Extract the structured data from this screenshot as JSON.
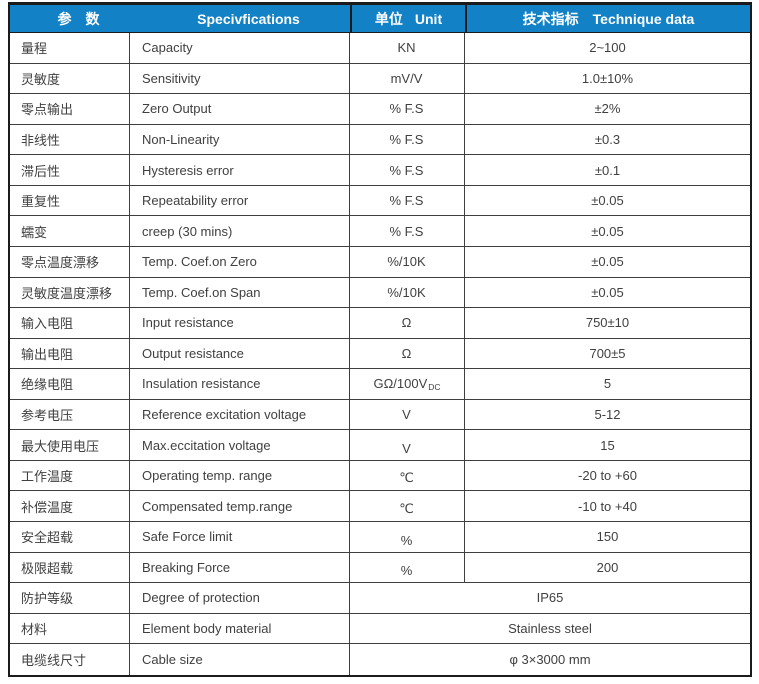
{
  "colors": {
    "header_bg": "#1281c6",
    "header_text": "#ffffff",
    "grid_line": "#3f3f3f",
    "outer_border": "#1b1b1b",
    "body_text": "#404040"
  },
  "table": {
    "header": {
      "param_zh": "参　数",
      "spec": "Specivfications",
      "unit_zh": "单位",
      "unit_en": "Unit",
      "tech_zh": "技术指标",
      "tech_en": "Technique data"
    },
    "rows": [
      {
        "zh": "量程",
        "en": "Capacity",
        "unit": "KN",
        "value": "2~100"
      },
      {
        "zh": "灵敏度",
        "en": "Sensitivity",
        "unit": "mV/V",
        "value": "1.0±10%"
      },
      {
        "zh": "零点输出",
        "en": "Zero Output",
        "unit": "% F.S",
        "value": "±2%"
      },
      {
        "zh": "非线性",
        "en": "Non-Linearity",
        "unit": "% F.S",
        "value": "±0.3"
      },
      {
        "zh": "滞后性",
        "en": "Hysteresis error",
        "unit": "% F.S",
        "value": "±0.1"
      },
      {
        "zh": "重复性",
        "en": "Repeatability error",
        "unit": "% F.S",
        "value": "±0.05"
      },
      {
        "zh": "蠕变",
        "en": "creep (30 mins)",
        "unit": "% F.S",
        "value": "±0.05"
      },
      {
        "zh": "零点温度漂移",
        "en": "Temp. Coef.on Zero",
        "unit": "%/10K",
        "value": "±0.05"
      },
      {
        "zh": "灵敏度温度漂移",
        "en": "Temp. Coef.on Span",
        "unit": "%/10K",
        "value": "±0.05"
      },
      {
        "zh": "输入电阻",
        "en": "Input resistance",
        "unit": "Ω",
        "value": "750±10"
      },
      {
        "zh": "输出电阻",
        "en": "Output resistance",
        "unit": "Ω",
        "value": "700±5"
      },
      {
        "zh": "绝缘电阻",
        "en": "Insulation resistance",
        "unit": "GΩ/100V",
        "unit_sub": "DC",
        "value": "5"
      },
      {
        "zh": "参考电压",
        "en": "Reference excitation voltage",
        "unit": "V",
        "value": "5-12"
      },
      {
        "zh": "最大使用电压",
        "en": "Max.eccitation voltage",
        "unit": "V",
        "value": "15"
      },
      {
        "zh": "工作温度",
        "en": "Operating temp. range",
        "unit": "℃",
        "value": "-20 to +60"
      },
      {
        "zh": "补偿温度",
        "en": "Compensated temp.range",
        "unit": "℃",
        "value": "-10 to +40"
      },
      {
        "zh": "安全超载",
        "en": "Safe Force limit",
        "unit": "%",
        "value": "150"
      },
      {
        "zh": "极限超载",
        "en": "Breaking Force",
        "unit": "%",
        "value": "200"
      },
      {
        "zh": "防护等级",
        "en": "Degree of protection",
        "merged": true,
        "value": "IP65"
      },
      {
        "zh": "材料",
        "en": "Element body material",
        "merged": true,
        "value": "Stainless steel"
      },
      {
        "zh": "电缆线尺寸",
        "en": "Cable size",
        "merged": true,
        "value": "φ 3×3000 mm"
      }
    ]
  }
}
